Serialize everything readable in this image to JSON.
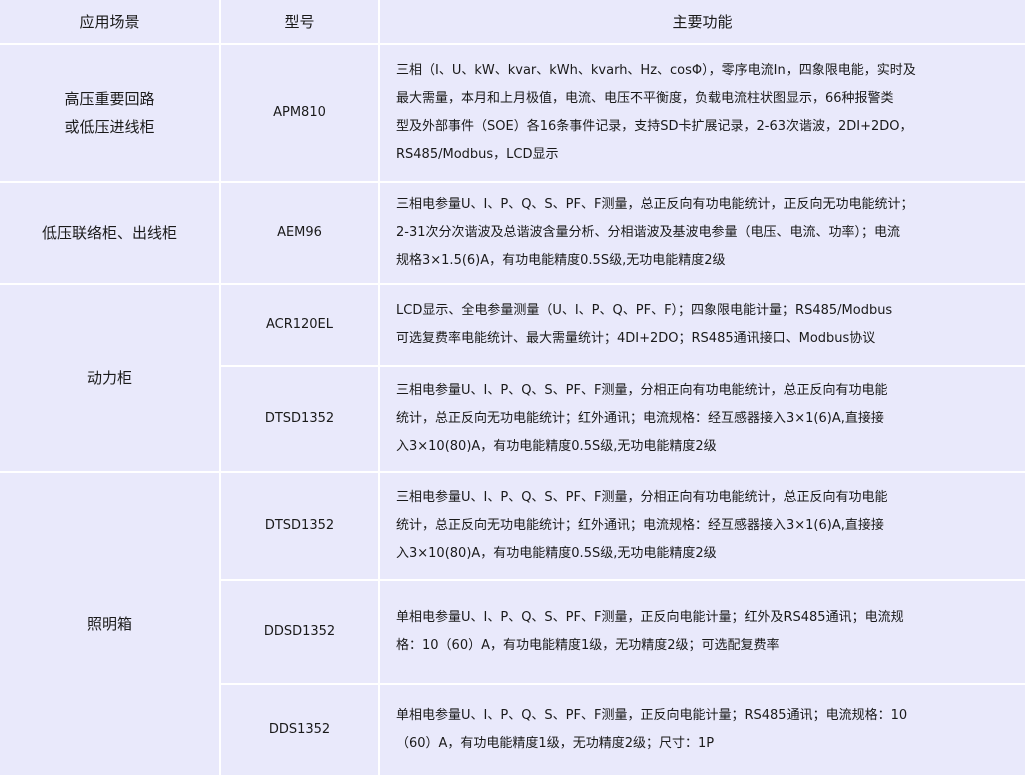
{
  "table": {
    "headers": [
      "应用场景",
      "型号",
      "主要功能"
    ],
    "rows": [
      {
        "scene": "高压重要回路\n或低压进线柜",
        "model": "APM810",
        "features": "三相（I、U、kW、kvar、kWh、kvarh、Hz、cosΦ），零序电流In，四象限电能，实时及\n最大需量，本月和上月极值，电流、电压不平衡度，负载电流柱状图显示，66种报警类\n型及外部事件（SOE）各16条事件记录，支持SD卡扩展记录，2-63次谐波，2DI+2DO，\nRS485/Modbus，LCD显示"
      },
      {
        "scene": "低压联络柜、出线柜",
        "model": "AEM96",
        "features": "三相电参量U、I、P、Q、S、PF、F测量，总正反向有功电能统计，正反向无功电能统计；\n2-31次分次谐波及总谐波含量分析、分相谐波及基波电参量（电压、电流、功率）；电流\n规格3×1.5(6)A，有功电能精度0.5S级,无功电能精度2级"
      },
      {
        "scene": "动力柜",
        "model": "ACR120EL",
        "features": "LCD显示、全电参量测量（U、I、P、Q、PF、F）；四象限电能计量；RS485/Modbus\n可选复费率电能统计、最大需量统计；4DI+2DO；RS485通讯接口、Modbus协议"
      },
      {
        "model": "DTSD1352",
        "features": "三相电参量U、I、P、Q、S、PF、F测量，分相正向有功电能统计，总正反向有功电能\n统计，总正反向无功电能统计；红外通讯；电流规格：经互感器接入3×1(6)A,直接接\n入3×10(80)A，有功电能精度0.5S级,无功电能精度2级"
      },
      {
        "scene": "照明箱",
        "model": "DTSD1352",
        "features": "三相电参量U、I、P、Q、S、PF、F测量，分相正向有功电能统计，总正反向有功电能\n统计，总正反向无功电能统计；红外通讯；电流规格：经互感器接入3×1(6)A,直接接\n入3×10(80)A，有功电能精度0.5S级,无功电能精度2级"
      },
      {
        "model": "DDSD1352",
        "features": "单相电参量U、I、P、Q、S、PF、F测量，正反向电能计量；红外及RS485通讯；电流规\n格：10（60）A，有功电能精度1级，无功精度2级；可选配复费率"
      },
      {
        "model": "DDS1352",
        "features": "单相电参量U、I、P、Q、S、PF、F测量，正反向电能计量；RS485通讯；电流规格：10\n（60）A，有功电能精度1级，无功精度2级；尺寸：1P"
      }
    ]
  }
}
